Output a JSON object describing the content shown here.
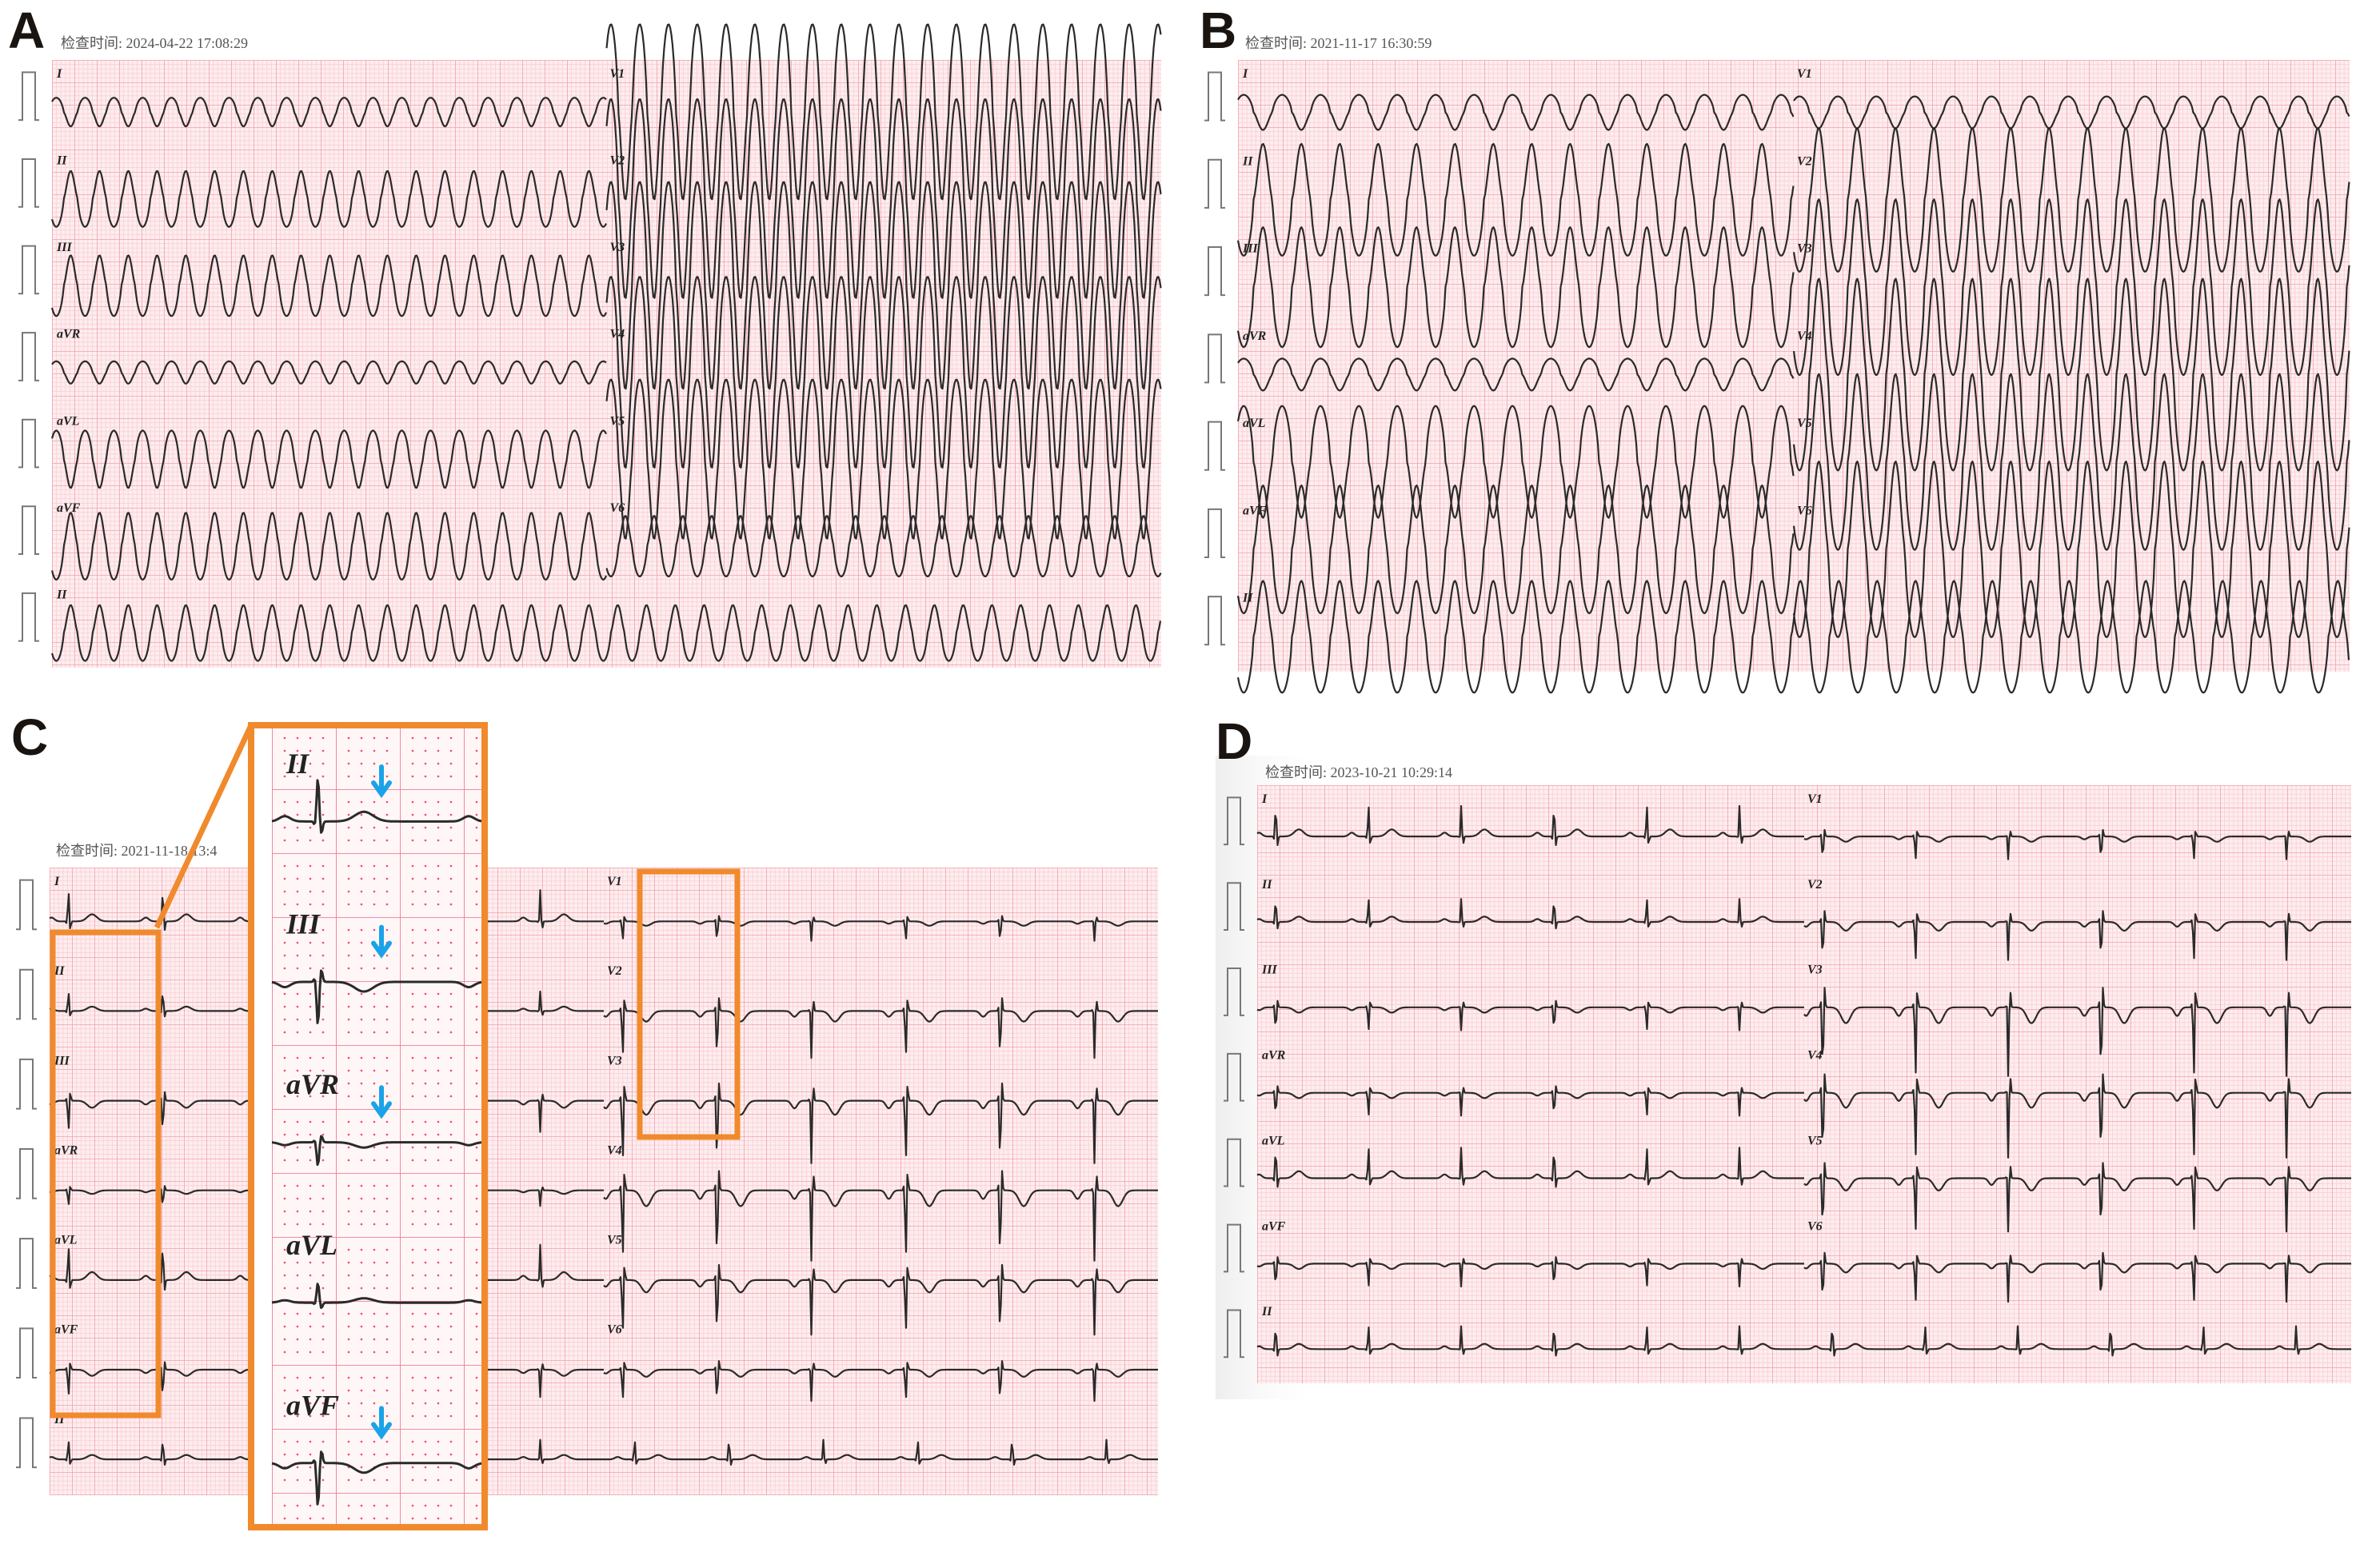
{
  "panels": [
    {
      "label": "A",
      "timestamp": "检查时间: 2024-04-22 17:08:29",
      "leads_left": [
        "I",
        "II",
        "III",
        "aVR",
        "aVL",
        "aVF"
      ],
      "leads_right": [
        "V1",
        "V2",
        "V3",
        "V4",
        "V5",
        "V6"
      ],
      "rhythm_lead": "II",
      "rhythm": "wide-complex tachycardia"
    },
    {
      "label": "B",
      "timestamp": "检查时间: 2021-11-17 16:30:59",
      "leads_left": [
        "I",
        "II",
        "III",
        "aVR",
        "aVL",
        "aVF"
      ],
      "leads_right": [
        "V1",
        "V2",
        "V3",
        "V4",
        "V5",
        "V6"
      ],
      "rhythm_lead": "II",
      "rhythm": "wide-complex tachycardia"
    },
    {
      "label": "C",
      "timestamp": "检查时间: 2021-11-18 13:4",
      "leads_left": [
        "I",
        "II",
        "III",
        "aVR",
        "aVL",
        "aVF"
      ],
      "leads_right": [
        "V1",
        "V2",
        "V3",
        "V4",
        "V5",
        "V6"
      ],
      "rhythm_lead": "II",
      "rhythm": "sinus",
      "inset_leads": [
        "II",
        "III",
        "aVR",
        "aVL",
        "aVF"
      ],
      "inset_arrow_leads": [
        "II",
        "III",
        "aVR",
        "aVF"
      ]
    },
    {
      "label": "D",
      "timestamp": "检查时间: 2023-10-21 10:29:14",
      "leads_left": [
        "I",
        "II",
        "III",
        "aVR",
        "aVL",
        "aVF"
      ],
      "leads_right": [
        "V1",
        "V2",
        "V3",
        "V4",
        "V5",
        "V6"
      ],
      "rhythm_lead": "II",
      "rhythm": "sinus"
    }
  ],
  "colors": {
    "grid_major": "#f4a0a8",
    "grid_minor": "#fbd3d7",
    "grid_bg": "#fdeef0",
    "trace": "#2a2a2a",
    "highlight_box": "#f08a2c",
    "arrow": "#1aa3e8"
  }
}
